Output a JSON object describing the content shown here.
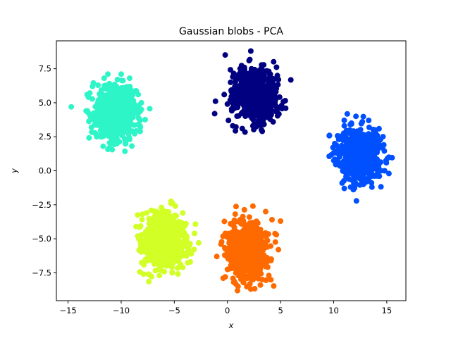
{
  "chart_data": {
    "type": "scatter",
    "title": "Gaussian blobs - PCA",
    "xlabel": "x",
    "ylabel": "y",
    "xlim": [
      -16.1,
      16.8
    ],
    "ylim": [
      -9.55,
      9.55
    ],
    "xticks": [
      -15,
      -10,
      -5,
      0,
      5,
      10,
      15
    ],
    "yticks": [
      -7.5,
      -5.0,
      -2.5,
      0.0,
      2.5,
      5.0,
      7.5
    ],
    "grid": false,
    "legend": "none",
    "series": [
      {
        "color": "#000080",
        "center": [
          2.6,
          5.5
        ],
        "points": [
          [
            2.2,
            8.8
          ],
          [
            -1.2,
            4.2
          ],
          [
            0.0,
            4.9
          ],
          [
            0.1,
            3.7
          ],
          [
            0.5,
            3.3
          ],
          [
            1.4,
            3.1
          ],
          [
            3.2,
            3.0
          ],
          [
            5.1,
            4.8
          ],
          [
            4.7,
            4.6
          ],
          [
            4.5,
            5.4
          ],
          [
            4.8,
            6.7
          ],
          [
            4.7,
            7.0
          ],
          [
            1.2,
            7.5
          ],
          [
            3.9,
            7.3
          ],
          [
            1.6,
            7.6
          ],
          [
            0.3,
            6.5
          ],
          [
            -0.3,
            5.6
          ],
          [
            4.3,
            3.6
          ],
          [
            2.4,
            3.3
          ],
          [
            0.7,
            6.2
          ]
        ]
      },
      {
        "color": "#2ef5c8",
        "center": [
          -10.5,
          4.3
        ],
        "points": [
          [
            -14.7,
            4.7
          ],
          [
            -13.2,
            5.6
          ],
          [
            -13.3,
            4.4
          ],
          [
            -12.9,
            4.0
          ],
          [
            -12.7,
            6.2
          ],
          [
            -12.3,
            2.5
          ],
          [
            -11.7,
            1.8
          ],
          [
            -11.1,
            1.7
          ],
          [
            -9.6,
            2.2
          ],
          [
            -9.2,
            2.3
          ],
          [
            -8.2,
            3.2
          ],
          [
            -8.3,
            3.8
          ],
          [
            -8.1,
            4.5
          ],
          [
            -8.1,
            5.0
          ],
          [
            -8.4,
            5.6
          ],
          [
            -9.2,
            6.8
          ],
          [
            -10.0,
            7.1
          ],
          [
            -11.6,
            6.8
          ],
          [
            -12.8,
            3.2
          ],
          [
            -10.4,
            2.0
          ]
        ]
      },
      {
        "color": "#0050ff",
        "center": [
          12.4,
          1.2
        ],
        "points": [
          [
            9.6,
            2.6
          ],
          [
            10.4,
            0.7
          ],
          [
            10.8,
            -0.9
          ],
          [
            11.0,
            -1.3
          ],
          [
            12.1,
            -1.0
          ],
          [
            13.1,
            -0.8
          ],
          [
            14.3,
            -0.4
          ],
          [
            15.2,
            -0.2
          ],
          [
            14.8,
            0.0
          ],
          [
            15.2,
            1.0
          ],
          [
            14.6,
            1.7
          ],
          [
            14.1,
            2.6
          ],
          [
            13.3,
            3.7
          ],
          [
            12.1,
            4.0
          ],
          [
            11.0,
            3.3
          ],
          [
            10.3,
            1.3
          ],
          [
            12.7,
            3.6
          ],
          [
            13.9,
            3.0
          ],
          [
            11.6,
            -1.2
          ],
          [
            13.6,
            -1.2
          ]
        ]
      },
      {
        "color": "#d1ff26",
        "center": [
          -5.9,
          -5.2
        ],
        "points": [
          [
            -5.3,
            -2.4
          ],
          [
            -4.9,
            -2.6
          ],
          [
            -8.6,
            -4.1
          ],
          [
            -8.0,
            -3.2
          ],
          [
            -7.6,
            -3.1
          ],
          [
            -7.7,
            -5.2
          ],
          [
            -7.5,
            -6.5
          ],
          [
            -7.9,
            -7.6
          ],
          [
            -6.4,
            -7.7
          ],
          [
            -5.2,
            -7.5
          ],
          [
            -4.2,
            -7.1
          ],
          [
            -3.5,
            -6.7
          ],
          [
            -3.6,
            -5.5
          ],
          [
            -2.7,
            -5.3
          ],
          [
            -3.1,
            -4.6
          ],
          [
            -3.9,
            -3.9
          ],
          [
            -4.2,
            -3.1
          ],
          [
            -6.1,
            -2.9
          ],
          [
            -8.1,
            -5.7
          ],
          [
            -3.4,
            -6.1
          ]
        ]
      },
      {
        "color": "#ff6a00",
        "center": [
          1.8,
          -5.8
        ],
        "points": [
          [
            2.4,
            -2.6
          ],
          [
            3.6,
            -3.0
          ],
          [
            4.2,
            -3.6
          ],
          [
            5.0,
            -3.7
          ],
          [
            4.8,
            -5.8
          ],
          [
            4.1,
            -6.6
          ],
          [
            3.9,
            -7.7
          ],
          [
            3.1,
            -8.4
          ],
          [
            2.2,
            -8.7
          ],
          [
            1.0,
            -8.5
          ],
          [
            0.6,
            -8.2
          ],
          [
            -0.4,
            -7.9
          ],
          [
            -0.2,
            -7.8
          ],
          [
            -1.0,
            -6.3
          ],
          [
            -0.6,
            -5.4
          ],
          [
            -0.2,
            -4.6
          ],
          [
            0.3,
            -3.9
          ],
          [
            1.2,
            -3.6
          ],
          [
            4.6,
            -4.7
          ],
          [
            1.5,
            -8.2
          ]
        ]
      }
    ]
  }
}
